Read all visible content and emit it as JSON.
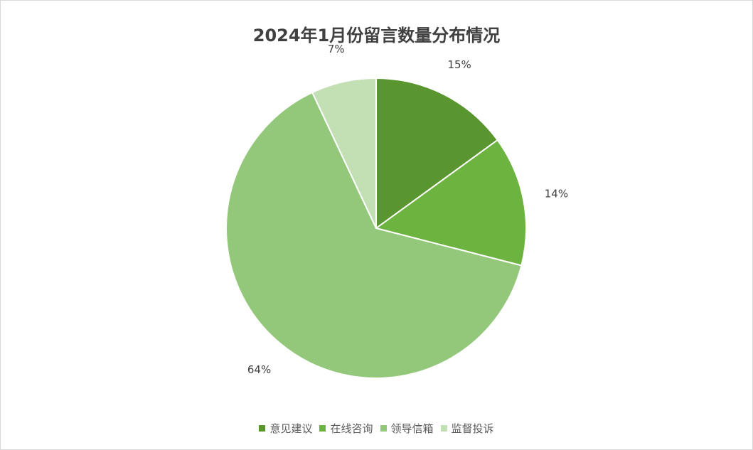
{
  "chart_data": {
    "type": "pie",
    "title": "2024年1月份留言数量分布情况",
    "categories": [
      "意见建议",
      "在线咨询",
      "领导信箱",
      "监督投诉"
    ],
    "values": [
      15,
      14,
      64,
      7
    ],
    "labels": [
      "15%",
      "14%",
      "64%",
      "7%"
    ],
    "colors": [
      "#5a962f",
      "#6db33f",
      "#93c87a",
      "#c3dfb4"
    ],
    "start_angle": "12 o'clock",
    "direction": "clockwise",
    "legend_position": "bottom"
  }
}
